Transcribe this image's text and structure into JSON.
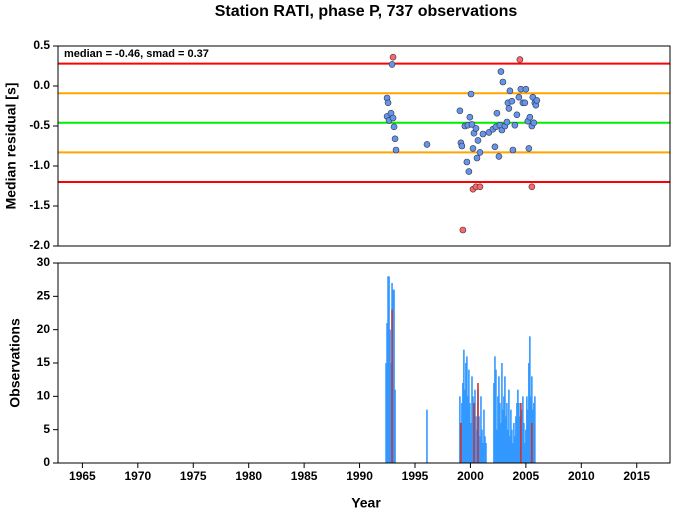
{
  "chart_data": [
    {
      "type": "scatter",
      "title": "Station RATI, phase P, 737 observations",
      "ylabel": "Median residual [s]",
      "annotation": "median = -0.46, smad = 0.37",
      "xlim": [
        1962.8,
        2018
      ],
      "ylim": [
        -2.0,
        0.5
      ],
      "yticks": [
        0.5,
        {
          "value": 0,
          "label": "0.0"
        },
        -0.5,
        {
          "value": -1,
          "label": "-1.0"
        },
        -1.5,
        {
          "value": -2,
          "label": "-2.0"
        }
      ],
      "hlines": [
        {
          "value": 0.28,
          "color": "#ff0000"
        },
        {
          "value": -0.09,
          "color": "#ffa500"
        },
        {
          "value": -0.46,
          "color": "#00ee00"
        },
        {
          "value": -0.83,
          "color": "#ffa500"
        },
        {
          "value": -1.2,
          "color": "#ff0000"
        }
      ],
      "series": [
        {
          "color": "#6495ed",
          "x": [
            1992.48,
            1992.57,
            1992.48,
            1992.66,
            1992.84,
            1993.02,
            1992.93,
            1993.11,
            1993.2,
            1993.29,
            1996.08,
            1999.05,
            1999.14,
            1999.23,
            1999.5,
            1999.68,
            1999.77,
            1999.86,
            1999.95,
            2000.05,
            2000.14,
            2000.23,
            2000.32,
            2000.5,
            2000.59,
            2000.68,
            2000.86,
            2001.13,
            2001.67,
            2002.03,
            2002.21,
            2002.3,
            2002.39,
            2002.57,
            2002.66,
            2002.75,
            2002.84,
            2002.93,
            2003.11,
            2003.29,
            2003.38,
            2003.47,
            2003.56,
            2003.74,
            2003.83,
            2004.01,
            2004.19,
            2004.37,
            2004.55,
            2004.73,
            2004.91,
            2005.0,
            2005.18,
            2005.27,
            2005.36,
            2005.54,
            2005.63,
            2005.72,
            2005.81,
            2005.9,
            2005.99
          ],
          "values": [
            -0.15,
            -0.21,
            -0.38,
            -0.43,
            -0.34,
            -0.4,
            0.27,
            -0.51,
            -0.66,
            -0.8,
            -0.73,
            -0.31,
            -0.71,
            -0.75,
            -0.5,
            -0.95,
            -0.49,
            -1.07,
            -0.39,
            -0.1,
            -0.48,
            -0.78,
            -0.59,
            -0.53,
            -0.9,
            -0.68,
            -0.83,
            -0.6,
            -0.58,
            -0.54,
            -0.76,
            -0.51,
            -0.34,
            -0.88,
            -0.49,
            0.18,
            -0.55,
            0.05,
            -0.5,
            -0.45,
            -0.21,
            -0.28,
            -0.06,
            -0.19,
            -0.8,
            -0.49,
            -0.36,
            -0.14,
            -0.04,
            -0.21,
            -0.21,
            -0.04,
            -0.44,
            -0.78,
            -0.39,
            -0.5,
            -0.14,
            -0.46,
            -0.21,
            -0.24,
            -0.18
          ]
        },
        {
          "color": "#ff6666",
          "x": [
            1993.02,
            1999.32,
            2000.23,
            2000.5,
            2000.86,
            2004.46,
            2005.54
          ],
          "values": [
            0.36,
            -1.8,
            -1.29,
            -1.26,
            -1.26,
            0.33,
            -1.26
          ]
        }
      ]
    },
    {
      "type": "bar",
      "ylabel": "Observations",
      "xlabel": "Year",
      "xlim": [
        1962.8,
        2018
      ],
      "ylim": [
        0,
        30
      ],
      "xticks": [
        1965,
        1970,
        1975,
        1980,
        1985,
        1990,
        1995,
        2000,
        2005,
        2010,
        2015
      ],
      "yticks": [
        0,
        5,
        10,
        15,
        20,
        25,
        30
      ],
      "series": [
        {
          "color": "#3399ff",
          "x": [
            1992.39,
            1992.48,
            1992.57,
            1992.66,
            1992.75,
            1992.84,
            1992.93,
            1993.02,
            1993.11,
            1993.2,
            1996.08,
            1999.05,
            1999.14,
            1999.23,
            1999.32,
            1999.41,
            1999.5,
            1999.59,
            1999.68,
            1999.77,
            1999.86,
            1999.95,
            2000.05,
            2000.14,
            2000.23,
            2000.32,
            2000.41,
            2000.5,
            2000.59,
            2000.68,
            2000.77,
            2000.86,
            2000.95,
            2001.04,
            2001.13,
            2001.22,
            2001.31,
            2001.4,
            2002.12,
            2002.21,
            2002.3,
            2002.39,
            2002.48,
            2002.57,
            2002.66,
            2002.75,
            2002.84,
            2002.93,
            2003.02,
            2003.11,
            2003.2,
            2003.29,
            2003.38,
            2003.47,
            2003.56,
            2003.65,
            2003.74,
            2003.83,
            2003.92,
            2004.01,
            2004.1,
            2004.19,
            2004.28,
            2004.37,
            2004.46,
            2004.55,
            2004.64,
            2004.73,
            2004.82,
            2004.91,
            2005.0,
            2005.09,
            2005.18,
            2005.27,
            2005.36,
            2005.45,
            2005.54,
            2005.63,
            2005.72,
            2005.81
          ],
          "values": [
            15,
            21,
            28,
            28,
            20,
            15,
            27,
            26,
            26,
            11,
            8,
            10,
            6,
            9,
            12,
            17,
            11,
            15,
            16,
            10,
            14,
            9,
            6,
            13,
            10,
            8,
            11,
            7,
            5,
            11,
            7,
            4,
            10,
            5,
            3,
            8,
            4,
            3,
            12,
            16,
            14,
            5,
            10,
            13,
            9,
            6,
            15,
            8,
            10,
            13,
            7,
            9,
            5,
            11,
            4,
            8,
            5,
            3,
            6,
            4,
            7,
            9,
            11,
            9,
            7,
            5,
            8,
            10,
            6,
            3,
            5,
            10,
            8,
            15,
            19,
            10,
            13,
            8,
            9,
            10
          ]
        },
        {
          "color": "#cc3333",
          "x": [
            1992.93,
            1999.14,
            2000.32,
            2000.68,
            2004.55,
            2005.54
          ],
          "values": [
            23,
            6,
            9,
            12,
            9,
            6
          ]
        }
      ]
    }
  ]
}
